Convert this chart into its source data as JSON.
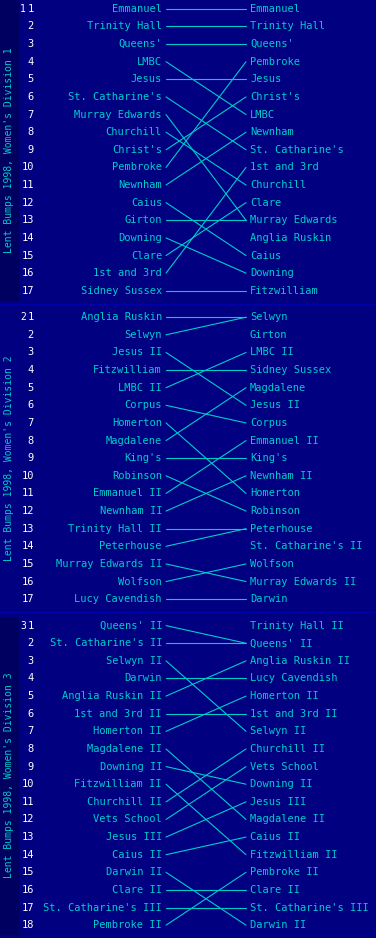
{
  "bg_color": "#000080",
  "line_color": "#00CCCC",
  "text_color": "#00CCCC",
  "label_color": "#FFFFFF",
  "sidebar_color": "#000060",
  "fig_width": 3.76,
  "fig_height": 9.38,
  "divisions": [
    {
      "name": "Lent Bumps 1998, Women's Division 1",
      "start_labels": [
        "Emmanuel",
        "Trinity Hall",
        "Queens'",
        "LMBC",
        "Jesus",
        "St. Catharine's",
        "Murray Edwards",
        "Churchill",
        "Christ's",
        "Pembroke",
        "Newnham",
        "Caius",
        "Girton",
        "Downing",
        "Clare",
        "1st and 3rd",
        "Sidney Sussex"
      ],
      "end_labels": [
        "Emmanuel",
        "Trinity Hall",
        "Queens'",
        "Pembroke",
        "Jesus",
        "Christ's",
        "LMBC",
        "Newnham",
        "St. Catharine's",
        "1st and 3rd",
        "Churchill",
        "Clare",
        "Murray Edwards",
        "Anglia Ruskin",
        "Caius",
        "Downing",
        "Fitzwilliam"
      ],
      "num_rows": 17
    },
    {
      "name": "Lent Bumps 1998, Women's Division 2",
      "start_labels": [
        "Anglia Ruskin",
        "Selwyn",
        "Jesus II",
        "Fitzwilliam",
        "LMBC II",
        "Corpus",
        "Homerton",
        "Magdalene",
        "King's",
        "Robinson",
        "Emmanuel II",
        "Newnham II",
        "Trinity Hall II",
        "Peterhouse",
        "Murray Edwards II",
        "Wolfson",
        "Lucy Cavendish"
      ],
      "end_labels": [
        "Selwyn",
        "Girton",
        "LMBC II",
        "Sidney Sussex",
        "Magdalene",
        "Jesus II",
        "Corpus",
        "Emmanuel II",
        "King's",
        "Newnham II",
        "Homerton",
        "Robinson",
        "Peterhouse",
        "St. Catharine's II",
        "Wolfson",
        "Murray Edwards II",
        "Darwin"
      ],
      "num_rows": 17
    },
    {
      "name": "Lent Bumps 1998, Women's Division 3",
      "start_labels": [
        "Queens' II",
        "St. Catharine's II",
        "Selwyn II",
        "Darwin",
        "Anglia Ruskin II",
        "1st and 3rd II",
        "Homerton II",
        "Magdalene II",
        "Downing II",
        "Fitzwilliam II",
        "Churchill II",
        "Vets School",
        "Jesus III",
        "Caius II",
        "Darwin II",
        "Clare II",
        "St. Catharine's III",
        "Pembroke II"
      ],
      "end_labels": [
        "Trinity Hall II",
        "Queens' II",
        "Anglia Ruskin II",
        "Lucy Cavendish",
        "Homerton II",
        "1st and 3rd II",
        "Selwyn II",
        "Churchill II",
        "Vets School",
        "Downing II",
        "Jesus III",
        "Magdalene II",
        "Caius II",
        "Fitzwilliam II",
        "Pembroke II",
        "Clare II",
        "St. Catharine's III",
        "Darwin II"
      ],
      "num_rows": 18
    }
  ]
}
